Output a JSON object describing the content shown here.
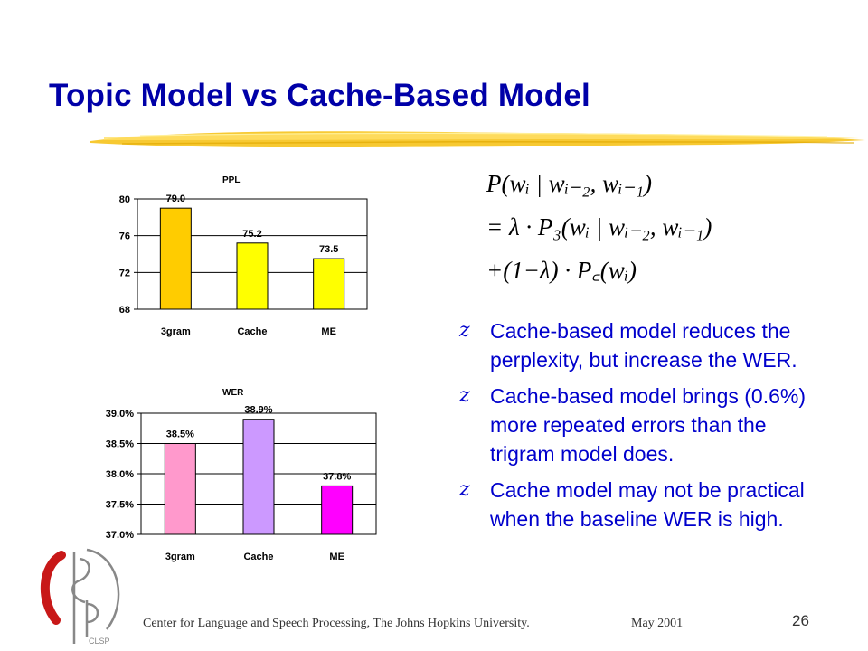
{
  "slide": {
    "title": "Topic Model vs Cache-Based Model",
    "bullet_icon": "z",
    "bullets": [
      "Cache-based model reduces the perplexity, but increase the WER.",
      "Cache-based model brings (0.6%) more repeated errors than the trigram model does.",
      "Cache model may not be practical when the baseline WER is high."
    ],
    "formula": {
      "line1": "P(wᵢ | wᵢ₋₂, wᵢ₋₁)",
      "line2": "= λ · P₃(wᵢ | wᵢ₋₂, wᵢ₋₁)",
      "line3": "+(1−λ) · P꜀(wᵢ)"
    },
    "footer": {
      "org": "Center for Language and Speech Processing, The Johns Hopkins University.",
      "date": "May 2001",
      "page": "26"
    },
    "logo": "CLSP"
  },
  "colors": {
    "title": "#0000a8",
    "bullet_text": "#0000cc",
    "brush": "#f5c518"
  },
  "chart_data": [
    {
      "type": "bar",
      "title": "PPL",
      "categories": [
        "3gram",
        "Cache",
        "ME"
      ],
      "values": [
        79.0,
        75.2,
        73.5
      ],
      "value_labels": [
        "79.0",
        "75.2",
        "73.5"
      ],
      "ylim": [
        68,
        80
      ],
      "yticks": [
        68,
        72,
        76,
        80
      ],
      "ytick_labels": [
        "68",
        "72",
        "76",
        "80"
      ],
      "bar_colors": [
        "#ffcc00",
        "#ffff00",
        "#ffff00"
      ],
      "grid": true,
      "xlabel": "",
      "ylabel": ""
    },
    {
      "type": "bar",
      "title": "WER",
      "categories": [
        "3gram",
        "Cache",
        "ME"
      ],
      "values": [
        38.5,
        38.9,
        37.8
      ],
      "value_labels": [
        "38.5%",
        "38.9%",
        "37.8%"
      ],
      "ylim": [
        37.0,
        39.0
      ],
      "yticks": [
        37.0,
        37.5,
        38.0,
        38.5,
        39.0
      ],
      "ytick_labels": [
        "37.0%",
        "37.5%",
        "38.0%",
        "38.5%",
        "39.0%"
      ],
      "bar_colors": [
        "#ff99cc",
        "#cc99ff",
        "#ff00ff"
      ],
      "grid": true,
      "xlabel": "",
      "ylabel": ""
    }
  ]
}
